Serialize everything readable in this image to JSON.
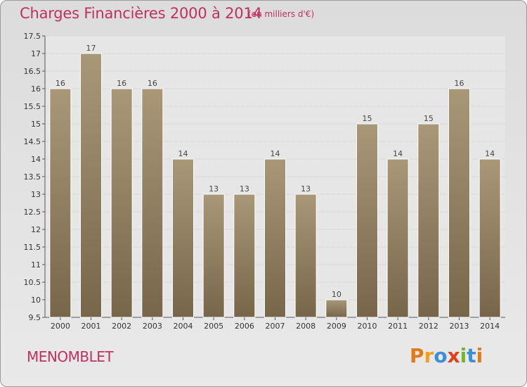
{
  "header": {
    "title": "Charges Financières 2000 à 2014",
    "subtitle": "(en milliers d'€)"
  },
  "footer": {
    "commune": "MENOMBLET",
    "logo_letters": [
      "P",
      "r",
      "o",
      "x",
      "i",
      "t",
      "i"
    ],
    "logo_colors": [
      "#e07b1a",
      "#f0a020",
      "#3a8fd8",
      "#e0401a",
      "#70b82a",
      "#3a8fd8",
      "#e07b1a"
    ]
  },
  "chart_data": {
    "type": "bar",
    "title": "Charges Financières 2000 à 2014",
    "subtitle": "(en milliers d'€)",
    "categories": [
      "2000",
      "2001",
      "2002",
      "2003",
      "2004",
      "2005",
      "2006",
      "2007",
      "2008",
      "2009",
      "2010",
      "2011",
      "2012",
      "2013",
      "2014"
    ],
    "values": [
      16,
      17,
      16,
      16,
      14,
      13,
      13,
      14,
      13,
      10,
      15,
      14,
      15,
      16,
      14
    ],
    "data_labels": [
      "16",
      "17",
      "16",
      "16",
      "14",
      "13",
      "13",
      "14",
      "13",
      "10",
      "15",
      "14",
      "15",
      "16",
      "14"
    ],
    "ylim": [
      9.5,
      17.5
    ],
    "yticks": [
      9.5,
      10,
      10.5,
      11,
      11.5,
      12,
      12.5,
      13,
      13.5,
      14,
      14.5,
      15,
      15.5,
      16,
      16.5,
      17,
      17.5
    ],
    "ytick_labels": [
      "9.5",
      "10",
      "10.5",
      "11",
      "11.5",
      "12",
      "12.5",
      "13",
      "13.5",
      "14",
      "14.5",
      "15",
      "15.5",
      "16",
      "16.5",
      "17",
      "17.5"
    ],
    "grid": true,
    "bar_color_top": "#a89878",
    "bar_color_bottom": "#77664a"
  }
}
